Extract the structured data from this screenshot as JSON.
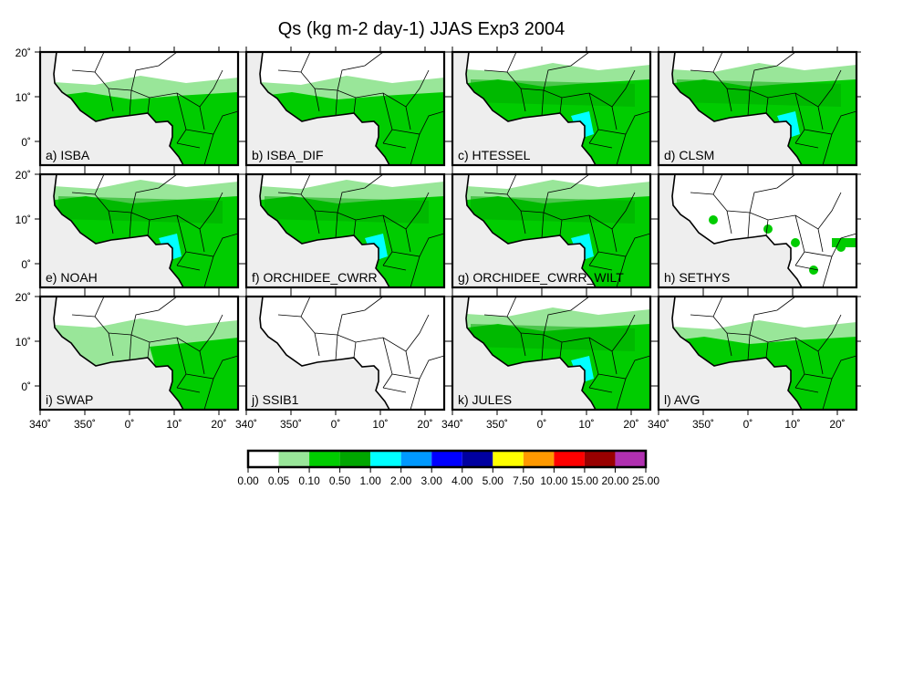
{
  "title": "Qs (kg m-2 day-1) JJAS Exp3 2004",
  "panels": [
    {
      "label": "a) ISBA"
    },
    {
      "label": "b) ISBA_DIF"
    },
    {
      "label": "c) HTESSEL"
    },
    {
      "label": "d) CLSM"
    },
    {
      "label": "e) NOAH"
    },
    {
      "label": "f) ORCHIDEE_CWRR"
    },
    {
      "label": "g) ORCHIDEE_CWRR_WILT"
    },
    {
      "label": "h) SETHYS"
    },
    {
      "label": "i) SWAP"
    },
    {
      "label": "j) SSIB1"
    },
    {
      "label": "k) JULES"
    },
    {
      "label": "l) AVG"
    }
  ],
  "lat_ticks": [
    "20˚",
    "10˚",
    "0˚"
  ],
  "lon_ticks": [
    "340˚",
    "350˚",
    "0˚",
    "10˚",
    "20˚"
  ],
  "colorbar": {
    "labels": [
      "0.00",
      "0.05",
      "0.10",
      "0.50",
      "1.00",
      "2.00",
      "3.00",
      "4.00",
      "5.00",
      "7.50",
      "10.00",
      "15.00",
      "20.00",
      "25.00"
    ],
    "colors": [
      "#ffffff",
      "#99e699",
      "#00cc00",
      "#00a600",
      "#00ffff",
      "#0099ff",
      "#0000ff",
      "#0000a0",
      "#ffff00",
      "#ff9900",
      "#ff0000",
      "#990000",
      "#b030b0"
    ]
  }
}
